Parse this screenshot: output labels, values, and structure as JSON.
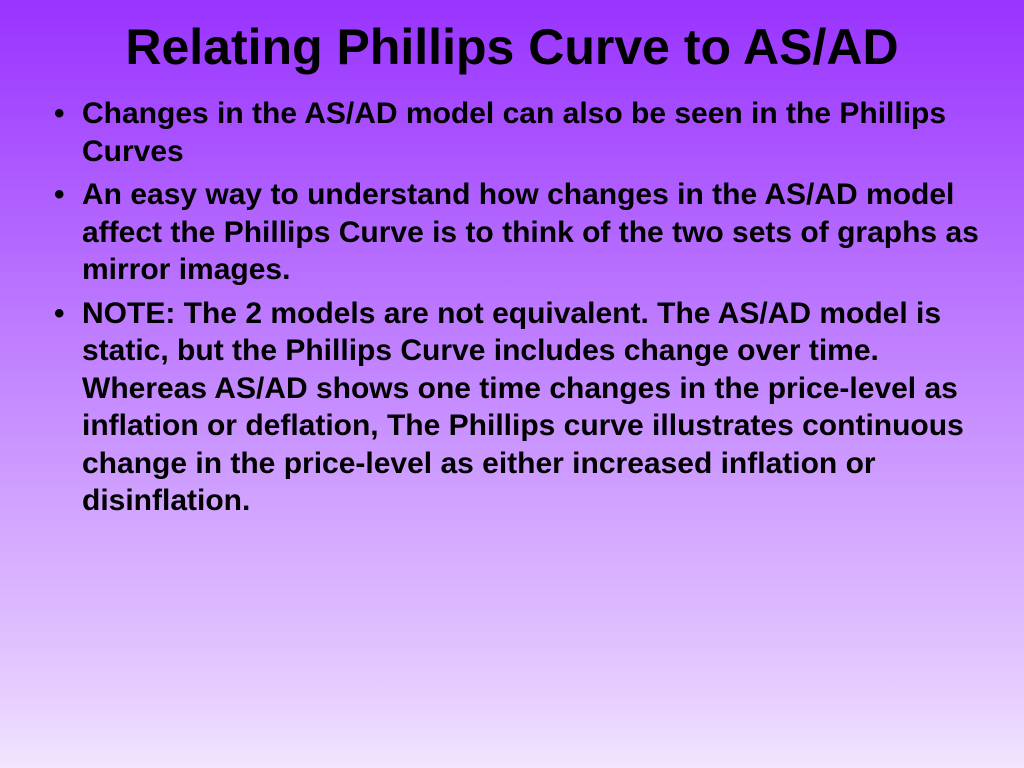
{
  "slide": {
    "title": "Relating Phillips Curve to AS/AD",
    "bullets": [
      "Changes in the AS/AD model can also be seen in the Phillips Curves",
      "An easy way to understand how changes in the AS/AD model affect the Phillips Curve is to think of the two sets of graphs as mirror images.",
      "NOTE: The 2 models are not equivalent. The AS/AD model is static, but the Phillips Curve includes change over time. Whereas AS/AD shows one time changes in the price-level as inflation or deflation, The Phillips curve illustrates continuous change in the price-level as either increased inflation or disinflation."
    ],
    "style": {
      "background_gradient_top": "#9933ff",
      "background_gradient_bottom": "#f2e6ff",
      "text_color": "#000000",
      "title_fontsize": 50,
      "body_fontsize": 30,
      "font_family": "Century Gothic"
    }
  }
}
